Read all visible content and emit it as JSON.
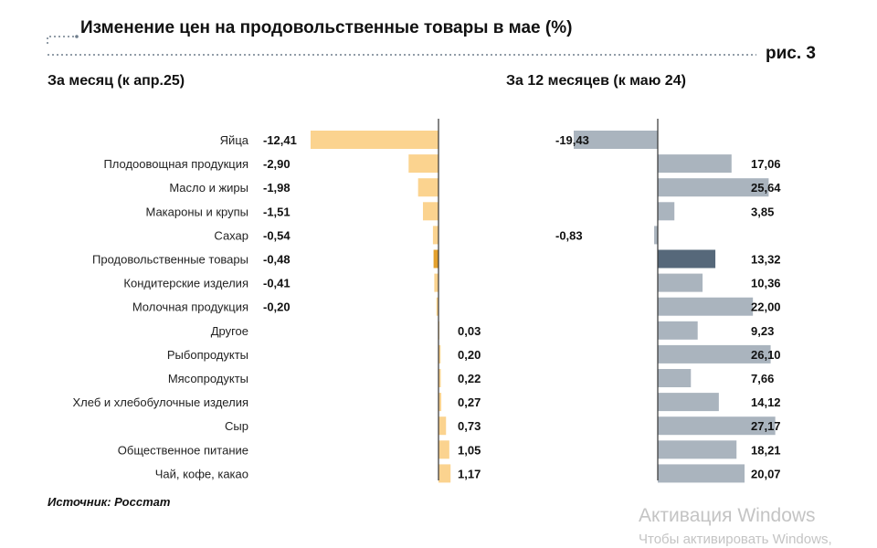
{
  "title": "Изменение цен на продовольственные товары в мае (%)",
  "figure_label": "рис. 3",
  "source": "Источник: Росстат",
  "watermark": {
    "line1": "Активация Windows",
    "line2": "Чтобы активировать Windows,"
  },
  "colors": {
    "monthly_bar": "#fbd38f",
    "monthly_bar_highlight": "#e3a12e",
    "yearly_bar": "#aab4be",
    "yearly_bar_highlight": "#56687a",
    "axis": "#333333",
    "dots": "#6e7d8c"
  },
  "chart_data": [
    {
      "type": "bar",
      "orientation": "horizontal",
      "title": "За месяц (к апр.25)",
      "categories": [
        "Яйца",
        "Плодоовощная продукция",
        "Масло и жиры",
        "Макароны и крупы",
        "Сахар",
        "Продовольственные товары",
        "Кондитерские изделия",
        "Молочная продукция",
        "Другое",
        "Рыбопродукты",
        "Мясопродукты",
        "Хлеб и хлебобулочные изделия",
        "Сыр",
        "Общественное питание",
        "Чай, кофе, какао"
      ],
      "values": [
        -12.41,
        -2.9,
        -1.98,
        -1.51,
        -0.54,
        -0.48,
        -0.41,
        -0.2,
        0.03,
        0.2,
        0.22,
        0.27,
        0.73,
        1.05,
        1.17
      ],
      "value_labels": [
        "-12,41",
        "-2,90",
        "-1,98",
        "-1,51",
        "-0,54",
        "-0,48",
        "-0,41",
        "-0,20",
        "0,03",
        "0,20",
        "0,22",
        "0,27",
        "0,73",
        "1,05",
        "1,17"
      ],
      "highlight": "Продовольственные товары",
      "xlim": [
        -12.41,
        1.17
      ]
    },
    {
      "type": "bar",
      "orientation": "horizontal",
      "title": "За 12 месяцев (к маю 24)",
      "categories": [
        "Яйца",
        "Плодоовощная продукция",
        "Масло и жиры",
        "Макароны и крупы",
        "Сахар",
        "Продовольственные товары",
        "Кондитерские изделия",
        "Молочная продукция",
        "Другое",
        "Рыбопродукты",
        "Мясопродукты",
        "Хлеб и хлебобулочные изделия",
        "Сыр",
        "Общественное питание",
        "Чай, кофе, какао"
      ],
      "values": [
        -19.43,
        17.06,
        25.64,
        3.85,
        -0.83,
        13.32,
        10.36,
        22.0,
        9.23,
        26.1,
        7.66,
        14.12,
        27.17,
        18.21,
        20.07
      ],
      "value_labels": [
        "-19,43",
        "17,06",
        "25,64",
        "3,85",
        "-0,83",
        "13,32",
        "10,36",
        "22,00",
        "9,23",
        "26,10",
        "7,66",
        "14,12",
        "27,17",
        "18,21",
        "20,07"
      ],
      "highlight": "Продовольственные товары",
      "xlim": [
        -19.43,
        27.17
      ]
    }
  ]
}
